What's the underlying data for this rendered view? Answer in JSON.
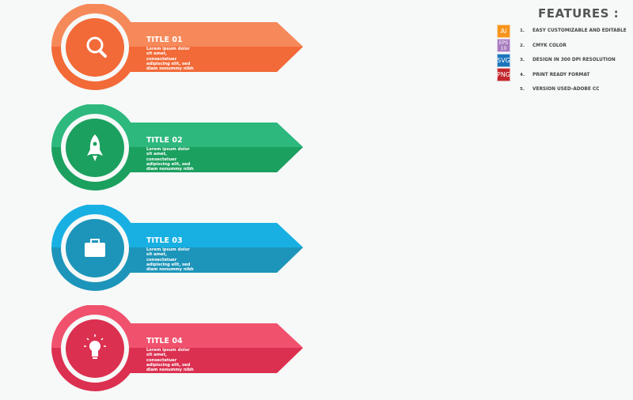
{
  "items": [
    {
      "title": "TITLE 01",
      "body": "Lorem ipsum dolor sit amet, consectetuer adipiscing elit, sed diam nonummy nibh",
      "icon": "search-icon",
      "light": "#F6895A",
      "dark": "#F26A38"
    },
    {
      "title": "TITLE 02",
      "body": "Lorem ipsum dolor sit amet, consectetuer adipiscing elit, sed diam nonummy nibh",
      "icon": "rocket-icon",
      "light": "#2DB87E",
      "dark": "#1BA05F"
    },
    {
      "title": "TITLE 03",
      "body": "Lorem ipsum dolor sit amet, consectetuer adipiscing elit, sed diam nonummy nibh",
      "icon": "briefcase-icon",
      "light": "#18B0E3",
      "dark": "#1D95BA"
    },
    {
      "title": "TITLE 04",
      "body": "Lorem ipsum dolor sit amet, consectetuer adipiscing elit, sed diam nonummy nibh",
      "icon": "lightbulb-icon",
      "light": "#F0526E",
      "dark": "#DC3050"
    }
  ],
  "features": {
    "title": "FEATURES :",
    "list": [
      {
        "badge": "Ai",
        "num": "1.",
        "label": "EASY CUSTOMIZABLE AND EDITABLE",
        "color": "#F7941D"
      },
      {
        "badge": "EPS 10",
        "num": "2.",
        "label": "CMYK COLOR",
        "color": "#A87CC0"
      },
      {
        "badge": "SVG",
        "num": "3.",
        "label": "DESIGN IN 300 DPI RESOLUTION",
        "color": "#1C75BC"
      },
      {
        "badge": "PNG",
        "num": "4.",
        "label": "PRINT READY FORMAT",
        "color": "#C1272D"
      },
      {
        "badge": "",
        "num": "5.",
        "label": "VERSION USED-ADOBE CC",
        "color": ""
      }
    ]
  }
}
